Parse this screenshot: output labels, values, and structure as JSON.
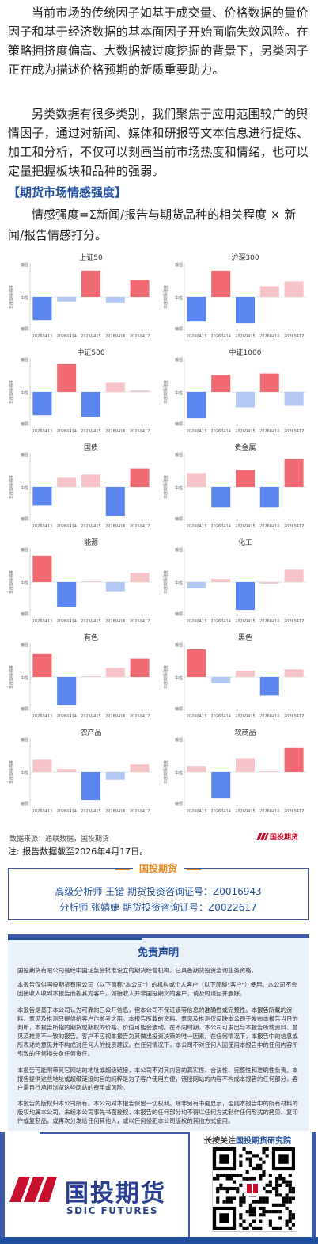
{
  "text": {
    "para1": "当前市场的传统因子如基于成交量、价格数据的量价因子和基于经济数据的基本面因子开始面临失效风险。在策略拥挤度偏高、大数据被过度挖掘的背景下，另类因子正在成为描述价格预期的新质重要助力。",
    "para2": "另类数据有很多类别，我们聚焦于应用范围较广的舆情因子，通过对新闻、媒体和研报等文本信息进行提炼、加工和分析，不仅可以刻画当前市场热度和情绪，也可以定量把握板块和品种的强弱。",
    "heading": "【期货市场情感强度】",
    "formula": "情感强度=Σ新闻/报告与期货品种的相关程度 × 新闻/报告情感打分。",
    "source": "数据来源：通联数据，国投期货",
    "logo_small": "国投期货",
    "note": "注: 报告数据截至2026年4月17日。"
  },
  "card": {
    "title": "国投期货",
    "line1": "高级分析师 王锴 期货投资咨询证号：Z0016943",
    "line2": "分析师 张婧婕 期货投资咨询证号：Z0022617"
  },
  "disclaimer": {
    "title": "免责声明",
    "p1": "国投期货有限公司是经中国证监会批准设立的期货经营机构，已具备期货投资咨询业务资格。",
    "p2": "本报告仅供国投期货有限公司（以下简称\"本公司\"）的机构或个人客户（以下简称\"客户\"）使用。本公司不会因接收人收到本报告而视其为客户。如接收人并非国投期货的客户，请及时退回并删除。",
    "p3": "本报告是基于本公司认为可靠的已公开信息，但本公司不保证该等信息的准确性或完整性。本报告所载的资料、意见及推测只提供给客户作参考之用。本报告所载的资料、意见及推测仅反映本公司于发布本报告当日的判断，本报告所指的期货或期权的价格、价值可能会波动。在不同时期，本公司可发出与本报告所载资料、意见及推测不一致的报告。客户不应视本报告为其做出投资决策的唯一因素。在任何情况下，本报告中的信息或所表述的意见并不构成对任何人的投资建议。在任何情况下，本公司不对任何人因使用本报告中的任何内容所引致的任何损失负任何责任。",
    "p4": "本报告可能附带其它网站的地址或超级链接，本公司不对其内容的真实性、合法性、完整性和准确性负责。本报告提供这些地址或超级链接的目的纯粹是为了客户使用方便，链接网站的内容不构成本报告的任何部分，客户需自行承担浏览这些网站的费用或风险。",
    "p5": "本报告的版权归本公司所有。本公司对本报告保留一切权利。除非另有书面显示，否则本报告中的所有材料的版权均属本公司。未经本公司事先书面授权，本报告的任何部分均不得以任何方式制作任何形式的拷贝、复印件或复制品，或再次分发给任何其他人，或以任何侵犯本公司版权的其他方式使用。"
  },
  "footer": {
    "name_cn": "国投期货",
    "name_en": "SDIC FUTURES",
    "qr_prefix": "长按关注",
    "qr_highlight": "国投期货研究院"
  },
  "colors": {
    "pos_strong": "#f26b73",
    "pos_light": "#f7c3c8",
    "neg_strong": "#5b86ef",
    "neg_light": "#b3c8f5",
    "neutral_light": "#e6cad4",
    "accent_blue": "#1f4e9c",
    "accent_orange": "#e98b1e"
  },
  "chart_data": {
    "type": "bar",
    "categories": [
      "20260413",
      "20260414",
      "20260415",
      "20260416",
      "20260417"
    ],
    "ylabel": "日度舆情强度",
    "y_ticks": [
      "偏强",
      "中性",
      "偏弱"
    ],
    "ylim": [
      -1,
      1
    ],
    "panels": [
      {
        "title": "上证50",
        "values": [
          -0.75,
          -0.15,
          0.85,
          -0.2,
          0.55
        ]
      },
      {
        "title": "沪深300",
        "values": [
          -0.8,
          0.85,
          -0.85,
          0.35,
          0.5
        ]
      },
      {
        "title": "中证500",
        "values": [
          -0.75,
          0.9,
          -0.8,
          0.3,
          0.05
        ]
      },
      {
        "title": "中证1000",
        "values": [
          -0.85,
          0.55,
          -0.5,
          0.6,
          -0.45
        ]
      },
      {
        "title": "国债",
        "values": [
          -0.6,
          0.3,
          0.4,
          -0.95,
          0.6
        ]
      },
      {
        "title": "贵金属",
        "values": [
          0.45,
          -0.65,
          0.55,
          -0.65,
          0.9
        ]
      },
      {
        "title": "能源",
        "values": [
          0.85,
          -0.8,
          0.0,
          -0.3,
          0.3
        ]
      },
      {
        "title": "化工",
        "values": [
          -0.2,
          0.1,
          -0.9,
          -0.05,
          0.4
        ]
      },
      {
        "title": "有色",
        "values": [
          0.75,
          -0.9,
          0.0,
          0.3,
          0.6
        ]
      },
      {
        "title": "黑色",
        "values": [
          0.9,
          -0.2,
          0.2,
          -0.6,
          0.25
        ]
      },
      {
        "title": "农产品",
        "values": [
          0.4,
          0.1,
          -0.9,
          -0.25,
          0.25
        ]
      },
      {
        "title": "软商品",
        "values": [
          0.2,
          -0.85,
          0.45,
          0.0,
          0.8
        ]
      }
    ]
  }
}
